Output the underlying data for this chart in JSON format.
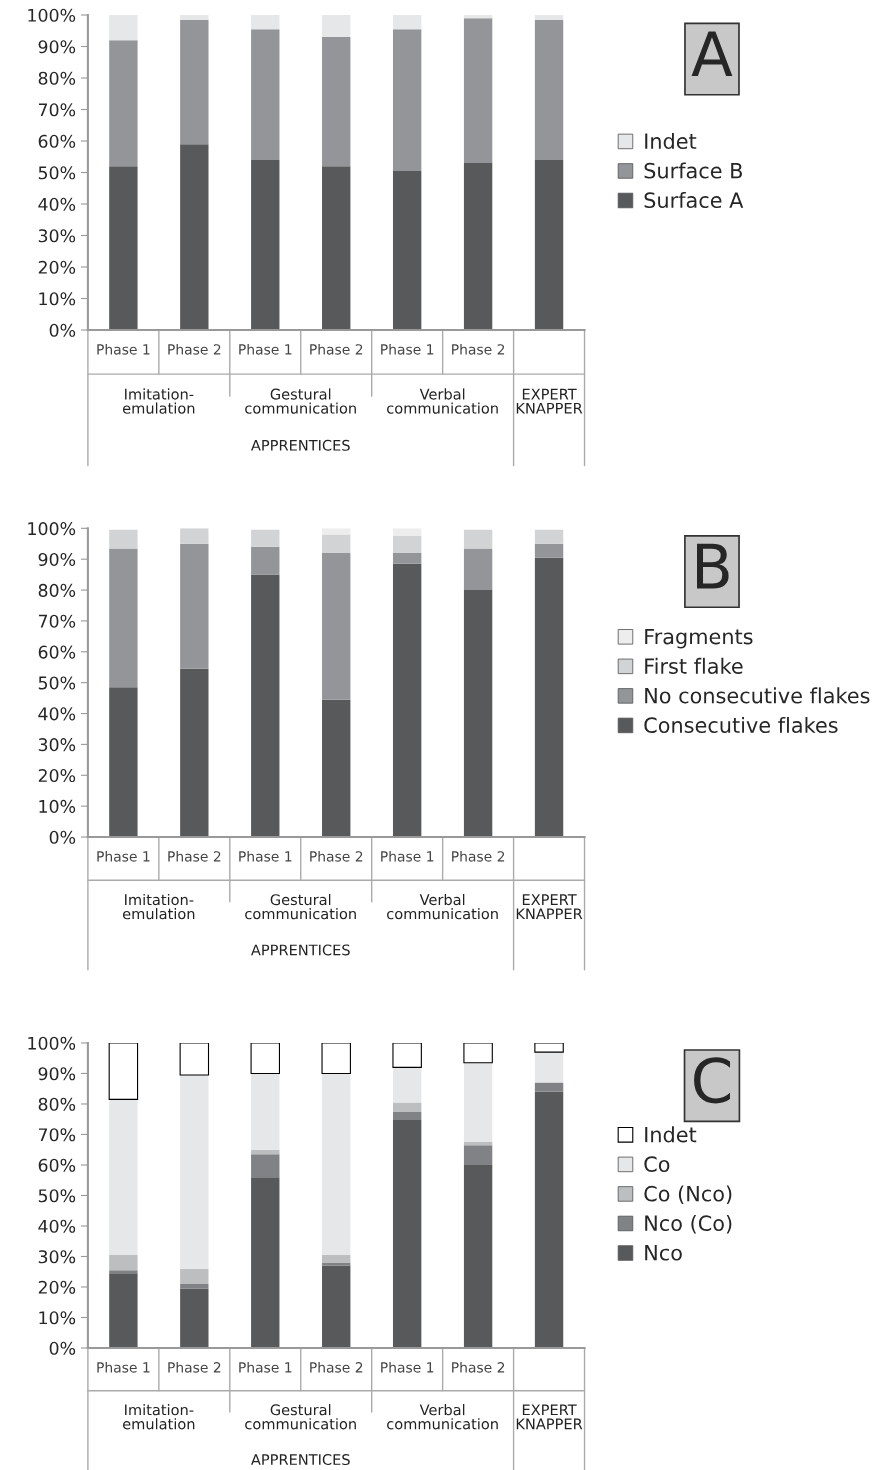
{
  "chart_data": [
    {
      "type": "bar",
      "stacked": true,
      "legend": "right",
      "categories": [
        "Phase 1",
        "Phase 2",
        "Phase 1",
        "Phase 2",
        "Phase 1",
        "Phase 2",
        null
      ],
      "series": [
        {
          "name": "Surface A",
          "color": "#58595b",
          "values": [
            52,
            59,
            54,
            52,
            50.5,
            53,
            54
          ]
        },
        {
          "name": "Surface B",
          "color": "#939598",
          "values": [
            40,
            39.5,
            41.5,
            41,
            45,
            46,
            44.5
          ]
        },
        {
          "name": "Indet",
          "color": "#e6e7e8",
          "values": [
            8,
            1.5,
            4.5,
            7,
            4.5,
            1,
            1.5
          ]
        }
      ],
      "ylim": [
        0,
        100
      ],
      "yticks": [
        {
          "value": 0,
          "label": "0%"
        },
        {
          "value": 10,
          "label": "10%"
        },
        {
          "value": 20,
          "label": "20%"
        },
        {
          "value": 30,
          "label": "30%"
        },
        {
          "value": 40,
          "label": "40%"
        },
        {
          "value": 50,
          "label": "50%"
        },
        {
          "value": 60,
          "label": "60%"
        },
        {
          "value": 70,
          "label": "70%"
        },
        {
          "value": 80,
          "label": "80%"
        },
        {
          "value": 90,
          "label": "90%"
        },
        {
          "value": 100,
          "label": "100%"
        }
      ],
      "annotations": [
        "Imitation-\nemulation",
        "Gestural\ncommunication",
        "Verbal\ncommunication",
        "EXPERT\nKNAPPER",
        "APPRENTICES",
        "A"
      ]
    },
    {
      "type": "bar",
      "stacked": true,
      "legend": "right",
      "categories": [
        "Phase 1",
        "Phase 2",
        "Phase 1",
        "Phase 2",
        "Phase 1",
        "Phase 2",
        null
      ],
      "series": [
        {
          "name": "Consecutive flakes",
          "color": "#58595b",
          "values": [
            48.5,
            54.5,
            85,
            44.5,
            88.5,
            80,
            90.5
          ]
        },
        {
          "name": "No consecutive flakes",
          "color": "#939598",
          "values": [
            45,
            40.5,
            9,
            47.5,
            3.5,
            13.5,
            4.5
          ]
        },
        {
          "name": "First flake",
          "color": "#d1d3d4",
          "values": [
            6,
            5,
            5.5,
            6,
            5.5,
            6,
            4.5
          ]
        },
        {
          "name": "Fragments",
          "color": "#ededee",
          "values": [
            null,
            0,
            null,
            2,
            2.5,
            null,
            null
          ]
        }
      ],
      "ylim": [
        0,
        100
      ],
      "yticks": [
        {
          "value": 0,
          "label": "0%"
        },
        {
          "value": 10,
          "label": "10%"
        },
        {
          "value": 20,
          "label": "20%"
        },
        {
          "value": 30,
          "label": "30%"
        },
        {
          "value": 40,
          "label": "40%"
        },
        {
          "value": 50,
          "label": "50%"
        },
        {
          "value": 60,
          "label": "60%"
        },
        {
          "value": 70,
          "label": "70%"
        },
        {
          "value": 80,
          "label": "80%"
        },
        {
          "value": 90,
          "label": "90%"
        },
        {
          "value": 100,
          "label": "100%"
        }
      ],
      "annotations": [
        "Imitation-\nemulation",
        "Gestural\ncommunication",
        "Verbal\ncommunication",
        "EXPERT\nKNAPPER",
        "APPRENTICES",
        "B"
      ]
    },
    {
      "type": "bar",
      "stacked": true,
      "legend": "right",
      "categories": [
        "Phase 1",
        "Phase 2",
        "Phase 1",
        "Phase 2",
        "Phase 1",
        "Phase 2",
        null
      ],
      "series": [
        {
          "name": "Nco",
          "color": "#58595b",
          "values": [
            24.5,
            19.5,
            56,
            27,
            75,
            60,
            84
          ]
        },
        {
          "name": "Nco (Co)",
          "color": "#808285",
          "values": [
            1,
            1.5,
            7.5,
            1,
            2.5,
            6.5,
            3
          ]
        },
        {
          "name": "Co (Nco)",
          "color": "#bcbec0",
          "values": [
            5,
            5,
            1.5,
            2.5,
            3,
            1,
            0
          ]
        },
        {
          "name": "Co",
          "color": "#e6e7e8",
          "values": [
            51,
            63.5,
            25,
            59.5,
            11.5,
            26,
            10
          ]
        },
        {
          "name": "Indet",
          "color": "#ffffff",
          "values": [
            18.5,
            10.5,
            10,
            10,
            8,
            6.5,
            3
          ]
        }
      ],
      "ylim": [
        0,
        100
      ],
      "yticks": [
        {
          "value": 0,
          "label": "0%"
        },
        {
          "value": 10,
          "label": "10%"
        },
        {
          "value": 20,
          "label": "20%"
        },
        {
          "value": 30,
          "label": "30%"
        },
        {
          "value": 40,
          "label": "40%"
        },
        {
          "value": 50,
          "label": "50%"
        },
        {
          "value": 60,
          "label": "60%"
        },
        {
          "value": 70,
          "label": "70%"
        },
        {
          "value": 80,
          "label": "80%"
        },
        {
          "value": 90,
          "label": "90%"
        },
        {
          "value": 100,
          "label": "100%"
        }
      ],
      "annotations": [
        "Imitation-\nemulation",
        "Gestural\ncommunication",
        "Verbal\ncommunication",
        "EXPERT\nKNAPPER",
        "APPRENTICES",
        "C"
      ]
    }
  ]
}
